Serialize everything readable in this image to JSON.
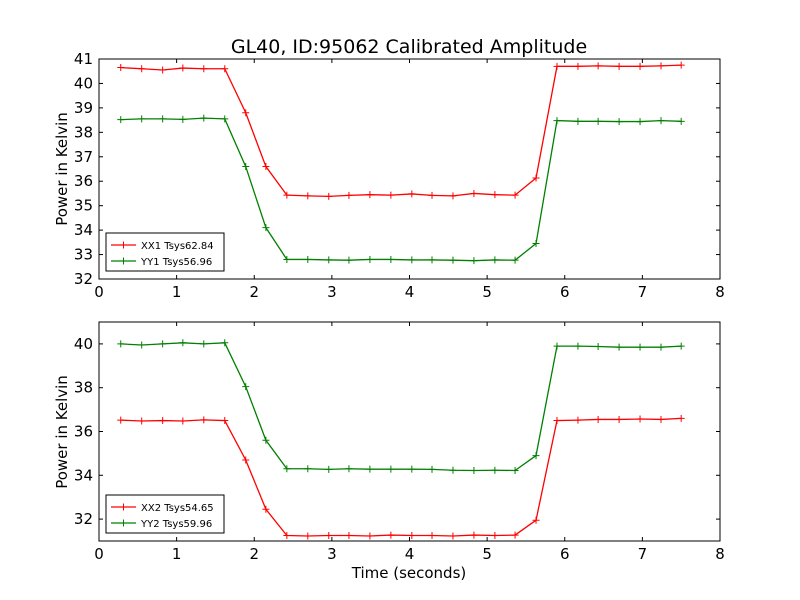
{
  "chart_data": [
    {
      "type": "line",
      "title": "GL40, ID:95062 Calibrated Amplitude",
      "xlabel": "",
      "ylabel": "Power in Kelvin",
      "xlim": [
        0,
        8
      ],
      "ylim": [
        32,
        41
      ],
      "xticks": [
        "0",
        "1",
        "2",
        "3",
        "4",
        "5",
        "6",
        "7",
        "8"
      ],
      "yticks": [
        "32",
        "33",
        "34",
        "35",
        "36",
        "37",
        "38",
        "39",
        "40",
        "41"
      ],
      "legend_position": "lower-left",
      "grid": false,
      "x": [
        0.28,
        0.55,
        0.82,
        1.08,
        1.35,
        1.62,
        1.89,
        2.15,
        2.42,
        2.69,
        2.96,
        3.22,
        3.49,
        3.76,
        4.03,
        4.29,
        4.56,
        4.83,
        5.1,
        5.36,
        5.63,
        5.9,
        6.17,
        6.43,
        6.7,
        6.97,
        7.24,
        7.5
      ],
      "series": [
        {
          "name": "XX1 Tsys62.84",
          "color": "#ff0000",
          "values": [
            40.65,
            40.6,
            40.55,
            40.63,
            40.6,
            40.6,
            38.8,
            36.6,
            35.43,
            35.4,
            35.38,
            35.42,
            35.45,
            35.43,
            35.48,
            35.42,
            35.4,
            35.5,
            35.45,
            35.43,
            36.13,
            40.7,
            40.7,
            40.72,
            40.7,
            40.7,
            40.72,
            40.75
          ]
        },
        {
          "name": "YY1 Tsys56.96",
          "color": "#008000",
          "values": [
            38.52,
            38.55,
            38.55,
            38.53,
            38.58,
            38.55,
            36.6,
            34.1,
            32.8,
            32.8,
            32.78,
            32.77,
            32.8,
            32.8,
            32.78,
            32.78,
            32.77,
            32.75,
            32.78,
            32.77,
            33.45,
            38.48,
            38.45,
            38.45,
            38.44,
            38.44,
            38.48,
            38.45
          ]
        }
      ]
    },
    {
      "type": "line",
      "title": "",
      "xlabel": "Time (seconds)",
      "ylabel": "Power in Kelvin",
      "xlim": [
        0,
        8
      ],
      "ylim": [
        31,
        41
      ],
      "xticks": [
        "0",
        "1",
        "2",
        "3",
        "4",
        "5",
        "6",
        "7",
        "8"
      ],
      "yticks": [
        "32",
        "34",
        "36",
        "38",
        "40"
      ],
      "legend_position": "lower-left",
      "grid": false,
      "x": [
        0.28,
        0.55,
        0.82,
        1.08,
        1.35,
        1.62,
        1.89,
        2.15,
        2.42,
        2.69,
        2.96,
        3.22,
        3.49,
        3.76,
        4.03,
        4.29,
        4.56,
        4.83,
        5.1,
        5.36,
        5.63,
        5.9,
        6.17,
        6.43,
        6.7,
        6.97,
        7.24,
        7.5
      ],
      "series": [
        {
          "name": "XX2 Tsys54.65",
          "color": "#ff0000",
          "values": [
            36.52,
            36.48,
            36.5,
            36.48,
            36.53,
            36.5,
            34.7,
            32.45,
            31.25,
            31.23,
            31.25,
            31.25,
            31.23,
            31.27,
            31.25,
            31.25,
            31.23,
            31.27,
            31.25,
            31.27,
            31.95,
            36.5,
            36.52,
            36.55,
            36.55,
            36.57,
            36.55,
            36.6
          ]
        },
        {
          "name": "YY2 Tsys59.96",
          "color": "#008000",
          "values": [
            40.0,
            39.95,
            40.0,
            40.05,
            40.0,
            40.05,
            38.05,
            35.6,
            34.3,
            34.3,
            34.27,
            34.3,
            34.28,
            34.28,
            34.28,
            34.27,
            34.23,
            34.22,
            34.23,
            34.22,
            34.9,
            39.9,
            39.9,
            39.88,
            39.85,
            39.85,
            39.85,
            39.9
          ]
        }
      ]
    }
  ]
}
